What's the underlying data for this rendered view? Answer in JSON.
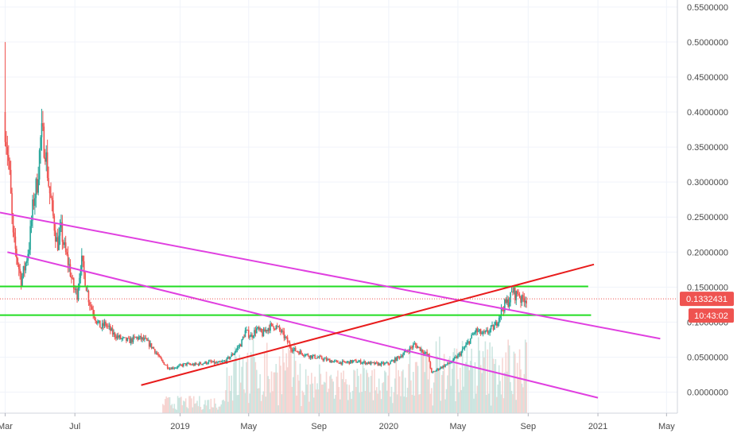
{
  "chart_data": {
    "type": "candlestick",
    "x_range": [
      "2018-02-20",
      "2021-05-20"
    ],
    "y_range": [
      -0.03,
      0.56
    ],
    "x_ticks": [
      {
        "label": "Mar",
        "date": "2018-03-01"
      },
      {
        "label": "Jul",
        "date": "2018-07-01"
      },
      {
        "label": "2019",
        "date": "2019-01-01"
      },
      {
        "label": "May",
        "date": "2019-05-01"
      },
      {
        "label": "Sep",
        "date": "2019-09-01"
      },
      {
        "label": "2020",
        "date": "2020-01-01"
      },
      {
        "label": "May",
        "date": "2020-05-01"
      },
      {
        "label": "Sep",
        "date": "2020-09-01"
      },
      {
        "label": "2021",
        "date": "2021-01-01"
      },
      {
        "label": "May",
        "date": "2021-05-01"
      }
    ],
    "y_ticks": [
      "0.5500000",
      "0.5000000",
      "0.4500000",
      "0.4000000",
      "0.3500000",
      "0.3000000",
      "0.2500000",
      "0.2000000",
      "0.1500000",
      "0.1000000",
      "0.0500000",
      "0.0000000"
    ],
    "y_tick_values": [
      0.55,
      0.5,
      0.45,
      0.4,
      0.35,
      0.3,
      0.25,
      0.2,
      0.15,
      0.1,
      0.05,
      0.0
    ],
    "price_path": [
      [
        "2018-03-01",
        0.38
      ],
      [
        "2018-03-08",
        0.32
      ],
      [
        "2018-03-15",
        0.22
      ],
      [
        "2018-03-22",
        0.19
      ],
      [
        "2018-03-29",
        0.16
      ],
      [
        "2018-04-05",
        0.18
      ],
      [
        "2018-04-12",
        0.21
      ],
      [
        "2018-04-19",
        0.27
      ],
      [
        "2018-04-26",
        0.3
      ],
      [
        "2018-05-03",
        0.37
      ],
      [
        "2018-05-10",
        0.35
      ],
      [
        "2018-05-17",
        0.29
      ],
      [
        "2018-05-24",
        0.25
      ],
      [
        "2018-05-31",
        0.21
      ],
      [
        "2018-06-07",
        0.23
      ],
      [
        "2018-06-14",
        0.2
      ],
      [
        "2018-06-21",
        0.18
      ],
      [
        "2018-06-28",
        0.15
      ],
      [
        "2018-07-05",
        0.14
      ],
      [
        "2018-07-12",
        0.19
      ],
      [
        "2018-07-19",
        0.16
      ],
      [
        "2018-07-26",
        0.13
      ],
      [
        "2018-08-02",
        0.115
      ],
      [
        "2018-08-09",
        0.1
      ],
      [
        "2018-08-16",
        0.092
      ],
      [
        "2018-08-23",
        0.098
      ],
      [
        "2018-09-06",
        0.083
      ],
      [
        "2018-09-20",
        0.076
      ],
      [
        "2018-10-04",
        0.073
      ],
      [
        "2018-10-18",
        0.078
      ],
      [
        "2018-11-01",
        0.074
      ],
      [
        "2018-11-15",
        0.063
      ],
      [
        "2018-11-29",
        0.045
      ],
      [
        "2018-12-13",
        0.034
      ],
      [
        "2018-12-27",
        0.036
      ],
      [
        "2019-01-10",
        0.04
      ],
      [
        "2019-01-24",
        0.039
      ],
      [
        "2019-02-07",
        0.041
      ],
      [
        "2019-02-21",
        0.043
      ],
      [
        "2019-03-07",
        0.041
      ],
      [
        "2019-03-21",
        0.044
      ],
      [
        "2019-04-04",
        0.055
      ],
      [
        "2019-04-18",
        0.07
      ],
      [
        "2019-04-25",
        0.087
      ],
      [
        "2019-05-05",
        0.08
      ],
      [
        "2019-05-15",
        0.09
      ],
      [
        "2019-05-25",
        0.083
      ],
      [
        "2019-06-05",
        0.093
      ],
      [
        "2019-06-15",
        0.095
      ],
      [
        "2019-06-25",
        0.088
      ],
      [
        "2019-07-05",
        0.076
      ],
      [
        "2019-07-15",
        0.062
      ],
      [
        "2019-08-01",
        0.056
      ],
      [
        "2019-08-15",
        0.052
      ],
      [
        "2019-09-01",
        0.049
      ],
      [
        "2019-09-15",
        0.046
      ],
      [
        "2019-10-01",
        0.043
      ],
      [
        "2019-10-15",
        0.042
      ],
      [
        "2019-11-01",
        0.044
      ],
      [
        "2019-11-15",
        0.043
      ],
      [
        "2019-12-01",
        0.041
      ],
      [
        "2019-12-15",
        0.04
      ],
      [
        "2020-01-01",
        0.041
      ],
      [
        "2020-01-15",
        0.048
      ],
      [
        "2020-02-01",
        0.058
      ],
      [
        "2020-02-15",
        0.068
      ],
      [
        "2020-02-25",
        0.062
      ],
      [
        "2020-03-10",
        0.052
      ],
      [
        "2020-03-16",
        0.027
      ],
      [
        "2020-03-25",
        0.032
      ],
      [
        "2020-04-05",
        0.037
      ],
      [
        "2020-04-20",
        0.043
      ],
      [
        "2020-05-05",
        0.055
      ],
      [
        "2020-05-20",
        0.072
      ],
      [
        "2020-06-01",
        0.088
      ],
      [
        "2020-06-15",
        0.082
      ],
      [
        "2020-06-25",
        0.088
      ],
      [
        "2020-07-05",
        0.094
      ],
      [
        "2020-07-15",
        0.115
      ],
      [
        "2020-07-22",
        0.125
      ],
      [
        "2020-07-29",
        0.13
      ],
      [
        "2020-08-05",
        0.145
      ],
      [
        "2020-08-10",
        0.138
      ],
      [
        "2020-08-15",
        0.143
      ],
      [
        "2020-08-20",
        0.13
      ],
      [
        "2020-08-25",
        0.135
      ],
      [
        "2020-08-29",
        0.133
      ]
    ],
    "horizontal_lines": [
      {
        "price": 0.151,
        "from": "2018-02-20",
        "to": "2020-12-15",
        "color": "#22dd22"
      },
      {
        "price": 0.11,
        "from": "2018-02-20",
        "to": "2020-12-20",
        "color": "#22dd22"
      }
    ],
    "trend_lines": [
      {
        "p1": [
          "2018-02-20",
          0.2565
        ],
        "p2": [
          "2021-04-20",
          0.0764
        ],
        "color": "#e040e0"
      },
      {
        "p1": [
          "2018-03-05",
          0.2
        ],
        "p2": [
          "2021-01-01",
          -0.008
        ],
        "color": "#e040e0"
      },
      {
        "p1": [
          "2018-10-25",
          0.01
        ],
        "p2": [
          "2020-12-25",
          0.1824
        ],
        "color": "#e81c1c"
      }
    ],
    "last_price": "0.1332431",
    "last_price_value": 0.1332431,
    "countdown": "10:43:02",
    "colors": {
      "up": "#26a69a",
      "down": "#ef5350",
      "price_badge": "#ef5350",
      "grid": "#f0f3fa",
      "axis_text": "#4a4a4a"
    },
    "grid": true
  }
}
